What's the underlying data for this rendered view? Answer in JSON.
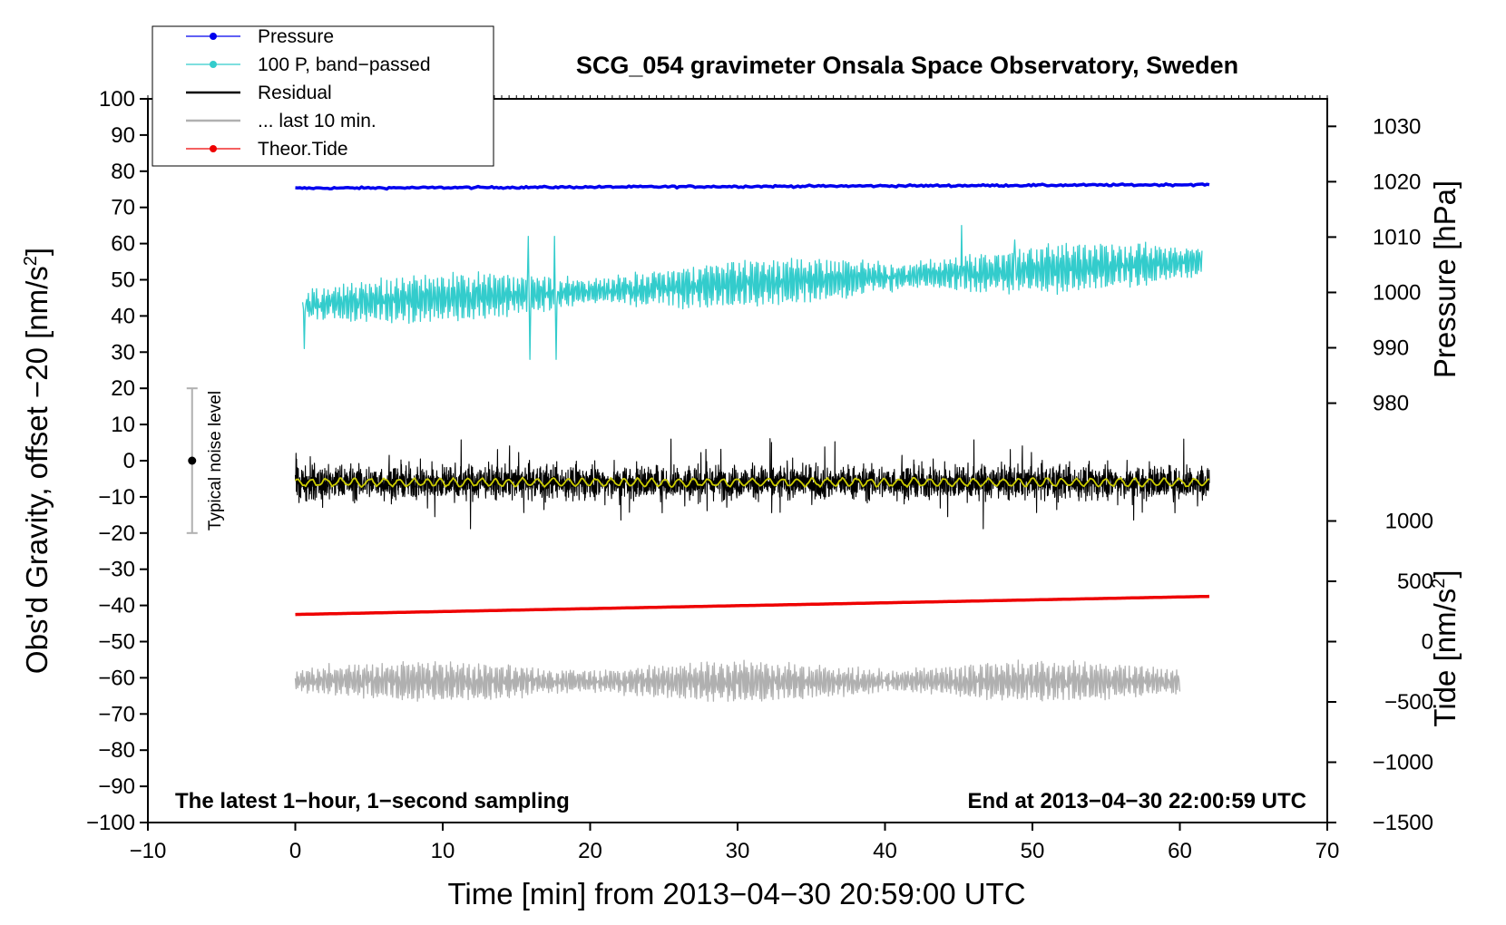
{
  "chart_data": {
    "type": "line",
    "title": "SCG_054 gravimeter Onsala Space Observatory, Sweden",
    "xlabel": "Time [min] from 2013−04−30 20:59:00 UTC",
    "ylabel": "Obs'd Gravity, offset −20 [nm/s²]",
    "ylabel_main": "Obs'd Gravity, offset −20 [nm/s",
    "ylabel_unit_close": "]",
    "right_pressure_label_main": "Pressure [hPa]",
    "right_tide_label_main": "Tide [nm/s",
    "right_tide_label_close": "]",
    "superscript": "2",
    "xlim": [
      -10,
      70
    ],
    "ylim": [
      -100,
      100
    ],
    "x_ticks": [
      -10,
      0,
      10,
      20,
      30,
      40,
      50,
      60,
      70
    ],
    "x_tick_labels": [
      "−10",
      "0",
      "10",
      "20",
      "30",
      "40",
      "50",
      "60",
      "70"
    ],
    "y_ticks": [
      100,
      90,
      80,
      70,
      60,
      50,
      40,
      30,
      20,
      10,
      0,
      -10,
      -20,
      -30,
      -40,
      -50,
      -60,
      -70,
      -80,
      -90,
      -100
    ],
    "y_tick_labels": [
      "100",
      "90",
      "80",
      "70",
      "60",
      "50",
      "40",
      "30",
      "20",
      "10",
      "0",
      "−10",
      "−20",
      "−30",
      "−40",
      "−50",
      "−60",
      "−70",
      "−80",
      "−90",
      "−100"
    ],
    "pressure_axis": {
      "label": "Pressure [hPa]",
      "ticks": [
        980,
        990,
        1000,
        1010,
        1020,
        1030
      ],
      "tick_labels": [
        "980",
        "990",
        "1000",
        "1010",
        "1020",
        "1030"
      ],
      "ref_value": 1000,
      "ref_gravity": 46.5,
      "gravity_per_hpa": 1.53
    },
    "tide_axis": {
      "label": "Tide [nm/s²]",
      "ticks": [
        1000,
        500,
        0,
        -500,
        -1000,
        -1500
      ],
      "tick_labels": [
        "1000",
        "500",
        "0",
        "−500",
        "−1000",
        "−1500"
      ],
      "ref_value": 0,
      "ref_gravity": -50,
      "gravity_per_unit": 0.03333
    },
    "series": [
      {
        "name": "Pressure",
        "color": "#0000ee",
        "style": "line-thick",
        "x_start": 0,
        "x_end": 62,
        "y_start": 75.3,
        "y_end": 76.3,
        "noise": 0.25
      },
      {
        "name": "100 P, band−passed",
        "color": "#33cccc",
        "style": "oscillating",
        "x_start": 0.5,
        "x_end": 61.5,
        "y_start": 43,
        "y_end": 55,
        "amplitude": 6,
        "spikes": [
          {
            "x": 0.6,
            "y": 31
          },
          {
            "x": 15.8,
            "y": 62
          },
          {
            "x": 15.9,
            "y": 28
          },
          {
            "x": 17.6,
            "y": 62
          },
          {
            "x": 17.7,
            "y": 28
          },
          {
            "x": 45.2,
            "y": 65
          },
          {
            "x": 48.8,
            "y": 61
          }
        ]
      },
      {
        "name": "Residual",
        "color": "#000000",
        "style": "noise",
        "x_start": 0,
        "x_end": 62,
        "y_start": -6,
        "y_end": -6,
        "amplitude": 5
      },
      {
        "name": "Residual smoothed",
        "color": "#cccc00",
        "style": "smooth",
        "x_start": 0,
        "x_end": 62,
        "y_start": -6,
        "y_end": -6,
        "amplitude": 1.2
      },
      {
        "name": "... last 10 min.",
        "color": "#b0b0b0",
        "style": "oscillating",
        "x_start": 0,
        "x_end": 60,
        "y_start": -61,
        "y_end": -61,
        "amplitude": 5
      },
      {
        "name": "Theor.Tide",
        "color": "#ee0000",
        "style": "line-thick",
        "x_start": 0,
        "x_end": 62,
        "y_start": -42.5,
        "y_end": -37.5,
        "noise": 0
      }
    ],
    "legend": [
      {
        "label": "Pressure",
        "color": "#0000ee",
        "marker": true
      },
      {
        "label": "100 P, band−passed",
        "color": "#33cccc",
        "marker": true
      },
      {
        "label": "Residual",
        "color": "#000000",
        "marker": false
      },
      {
        "label": "... last 10 min.",
        "color": "#b0b0b0",
        "marker": false
      },
      {
        "label": "Theor.Tide",
        "color": "#ee0000",
        "marker": true
      }
    ],
    "legend_position": "top-left",
    "noise_bar": {
      "label": "Typical noise level",
      "x": -7,
      "center": 0,
      "low": -20,
      "high": 20
    },
    "annotations": {
      "bottom_left": "The latest 1−hour, 1−second sampling",
      "bottom_right": "End at 2013−04−30 22:00:59 UTC"
    },
    "grid": false
  }
}
